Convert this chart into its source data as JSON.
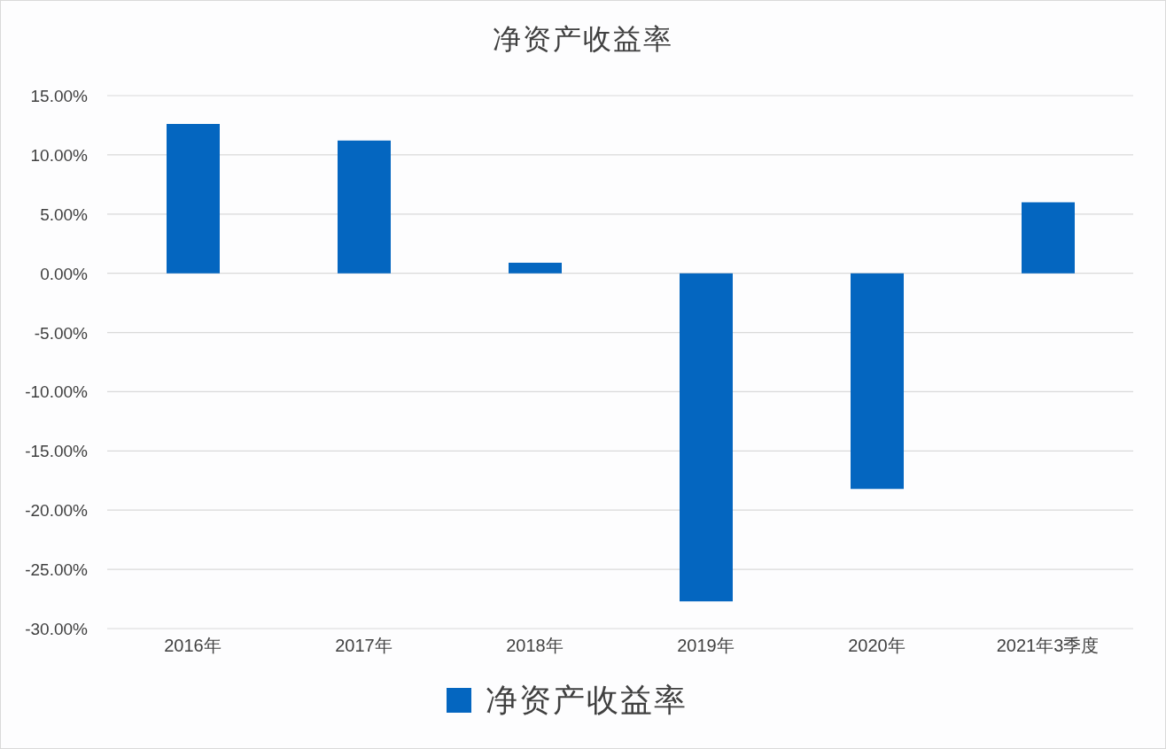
{
  "chart_data": {
    "type": "bar",
    "title": "净资产收益率",
    "categories": [
      "2016年",
      "2017年",
      "2018年",
      "2019年",
      "2020年",
      "2021年3季度"
    ],
    "series": [
      {
        "name": "净资产收益率",
        "color": "#0466c0",
        "values": [
          12.6,
          11.2,
          0.9,
          -27.7,
          -18.2,
          6.0
        ]
      }
    ],
    "ylim": [
      -30,
      15
    ],
    "yticks": [
      {
        "value": -30,
        "label": "-30.00%"
      },
      {
        "value": -25,
        "label": "-25.00%"
      },
      {
        "value": -20,
        "label": "-20.00%"
      },
      {
        "value": -15,
        "label": "-15.00%"
      },
      {
        "value": -10,
        "label": "-10.00%"
      },
      {
        "value": -5,
        "label": "-5.00%"
      },
      {
        "value": 0,
        "label": "0.00%"
      },
      {
        "value": 5,
        "label": "5.00%"
      },
      {
        "value": 10,
        "label": "10.00%"
      },
      {
        "value": 15,
        "label": "15.00%"
      }
    ],
    "grid": "y",
    "legend": "bottom"
  }
}
